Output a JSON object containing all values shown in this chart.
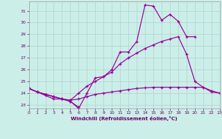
{
  "bg_color": "#cbeee8",
  "line_color": "#990099",
  "xlabel": "Windchill (Refroidissement éolien,°C)",
  "xlim": [
    0,
    23
  ],
  "ylim": [
    22.7,
    31.8
  ],
  "xticks": [
    0,
    1,
    2,
    3,
    4,
    5,
    6,
    7,
    8,
    9,
    10,
    11,
    12,
    13,
    14,
    15,
    16,
    17,
    18,
    19,
    20,
    21,
    22,
    23
  ],
  "yticks": [
    23,
    24,
    25,
    26,
    27,
    28,
    29,
    30,
    31
  ],
  "grid_color": "#b0d0cc",
  "tick_color": "#660066",
  "series": [
    {
      "x": [
        0,
        1,
        2,
        3,
        4,
        5,
        6,
        7,
        8,
        9,
        10,
        11,
        12,
        13,
        14,
        15,
        16,
        17,
        18,
        19,
        20
      ],
      "y": [
        24.4,
        24.1,
        23.9,
        23.7,
        23.5,
        23.3,
        22.7,
        24.0,
        25.3,
        25.4,
        26.0,
        27.5,
        27.5,
        28.4,
        31.5,
        31.4,
        30.2,
        30.7,
        30.1,
        28.8,
        28.8
      ]
    },
    {
      "x": [
        0,
        1,
        2,
        3,
        4,
        5,
        6,
        7,
        8,
        9,
        10,
        11,
        12,
        13,
        14,
        15,
        16,
        17,
        18,
        19,
        20,
        21,
        22,
        23
      ],
      "y": [
        24.4,
        24.1,
        23.9,
        23.7,
        23.5,
        23.4,
        24.0,
        24.6,
        25.0,
        25.4,
        25.8,
        26.5,
        27.0,
        27.4,
        27.8,
        28.1,
        28.4,
        28.6,
        28.8,
        27.3,
        25.0,
        24.5,
        24.2,
        24.0
      ]
    },
    {
      "x": [
        0,
        1,
        2,
        3,
        4,
        5,
        6,
        7,
        8,
        9,
        10,
        11,
        12,
        13,
        14,
        15,
        16,
        17,
        18,
        19,
        20,
        21,
        22,
        23
      ],
      "y": [
        24.4,
        24.1,
        23.9,
        23.7,
        23.5,
        23.4,
        23.5,
        23.7,
        23.9,
        24.0,
        24.1,
        24.2,
        24.3,
        24.4,
        24.45,
        24.5,
        24.5,
        24.5,
        24.5,
        24.5,
        24.5,
        24.5,
        24.1,
        24.0
      ]
    },
    {
      "x": [
        0,
        1,
        2,
        3,
        4,
        5,
        6
      ],
      "y": [
        24.4,
        24.1,
        23.8,
        23.5,
        23.5,
        23.3,
        22.8
      ]
    }
  ]
}
